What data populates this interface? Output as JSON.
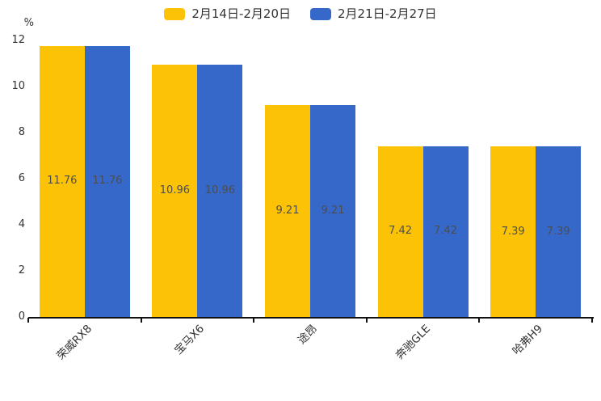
{
  "chart_data": {
    "type": "bar",
    "title": "",
    "categories": [
      "荣威RX8",
      "宝马X6",
      "途昂",
      "奔驰GLE",
      "哈弗H9"
    ],
    "series": [
      {
        "name": "2月14日-2月20日",
        "color": "#FCC306",
        "values": [
          11.76,
          10.96,
          9.21,
          7.42,
          7.39
        ]
      },
      {
        "name": "2月21日-2月27日",
        "color": "#3568C9",
        "values": [
          11.76,
          10.96,
          9.21,
          7.42,
          7.39
        ]
      }
    ],
    "xlabel": "",
    "ylabel": "%",
    "ylim": [
      0,
      12
    ],
    "yticks": [
      0,
      2,
      4,
      6,
      8,
      10,
      12
    ],
    "grid": false,
    "legend_position": "top-center",
    "value_label_decimals": 2,
    "axis_color": "#111111",
    "label_color": "#4d4d4d"
  }
}
